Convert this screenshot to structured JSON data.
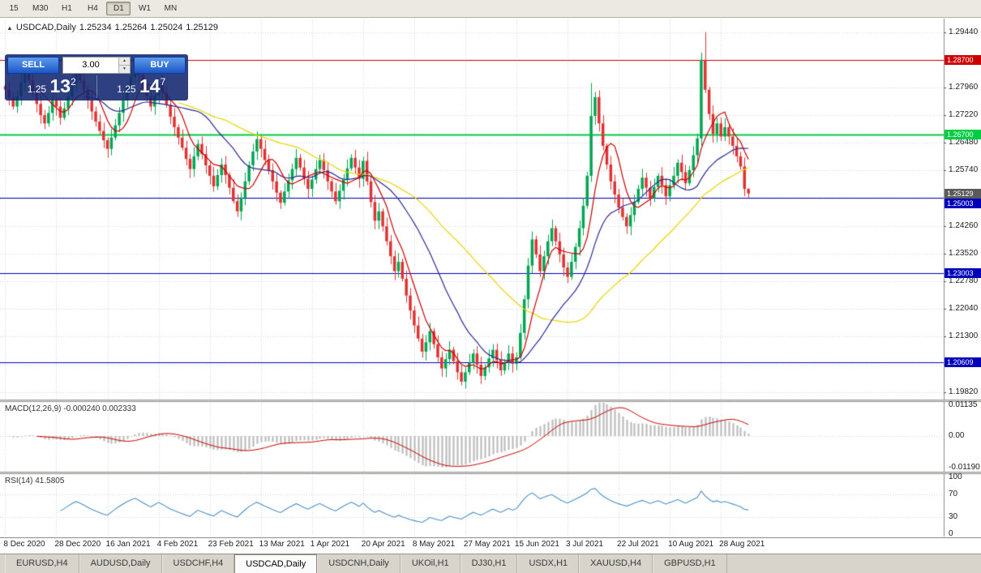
{
  "toolbar": {
    "periods": [
      {
        "label": "15",
        "active": false
      },
      {
        "label": "M30",
        "active": false
      },
      {
        "label": "H1",
        "active": false
      },
      {
        "label": "H4",
        "active": false
      },
      {
        "label": "D1",
        "active": true
      },
      {
        "label": "W1",
        "active": false
      },
      {
        "label": "MN",
        "active": false
      }
    ]
  },
  "chart_header": {
    "collapse_icon": "▲",
    "symbol": "USDCAD,Daily",
    "open": "1.25234",
    "high": "1.25264",
    "low": "1.25024",
    "close": "1.25129"
  },
  "trade_panel": {
    "sell_label": "SELL",
    "buy_label": "BUY",
    "volume": "3.00",
    "up_arrow": "▲",
    "down_arrow": "▼",
    "sell_price": {
      "base": "1.25",
      "pips": "13",
      "point": "2"
    },
    "buy_price": {
      "base": "1.25",
      "pips": "14",
      "point": "7"
    }
  },
  "chart_data": {
    "type": "candlestick",
    "symbol": "USDCAD",
    "timeframe": "Daily",
    "up_color": "#00a652",
    "down_color": "#e03232",
    "first_open": 1.28,
    "closes": [
      1.279,
      1.2768,
      1.2745,
      1.2772,
      1.2808,
      1.2836,
      1.2815,
      1.2782,
      1.2752,
      1.2722,
      1.27,
      1.2728,
      1.2762,
      1.2745,
      1.2715,
      1.274,
      1.2772,
      1.2806,
      1.2834,
      1.2815,
      1.279,
      1.2762,
      1.2732,
      1.2705,
      1.268,
      1.2655,
      1.2632,
      1.2662,
      1.2695,
      1.2728,
      1.2762,
      1.2795,
      1.2825,
      1.2852,
      1.283,
      1.2802,
      1.2772,
      1.2745,
      1.2775,
      1.2808,
      1.2782,
      1.275,
      1.2718,
      1.269,
      1.2662,
      1.2635,
      1.2605,
      1.2578,
      1.2612,
      1.2645,
      1.2618,
      1.2588,
      1.256,
      1.2532,
      1.2562,
      1.259,
      1.2562,
      1.2528,
      1.2492,
      1.2465,
      1.2502,
      1.2545,
      1.2588,
      1.2625,
      1.2658,
      1.2632,
      1.2602,
      1.2575,
      1.2545,
      1.2515,
      1.2488,
      1.2518,
      1.2548,
      1.2578,
      1.2608,
      1.2582,
      1.2552,
      1.2525,
      1.255,
      1.2578,
      1.2602,
      1.2575,
      1.2545,
      1.2518,
      1.2492,
      1.252,
      1.255,
      1.258,
      1.2608,
      1.2582,
      1.2552,
      1.26,
      1.2545,
      1.249,
      1.244,
      1.2465,
      1.2425,
      1.2385,
      1.2345,
      1.2305,
      1.233,
      1.2285,
      1.224,
      1.22,
      1.216,
      1.2125,
      1.209,
      1.2115,
      1.2145,
      1.211,
      1.2075,
      1.2045,
      1.207,
      1.2095,
      1.2065,
      1.2035,
      1.201,
      1.2035,
      1.206,
      1.2085,
      1.2055,
      1.2025,
      1.2048,
      1.2072,
      1.2095,
      1.2068,
      1.204,
      1.2062,
      1.2085,
      1.2058,
      1.2075,
      1.214,
      1.223,
      1.232,
      1.239,
      1.235,
      1.2305,
      1.2345,
      1.2385,
      1.242,
      1.2385,
      1.235,
      1.2315,
      1.229,
      1.233,
      1.237,
      1.242,
      1.248,
      1.256,
      1.272,
      1.277,
      1.27,
      1.264,
      1.259,
      1.2545,
      1.251,
      1.2475,
      1.245,
      1.2425,
      1.2455,
      1.249,
      1.2525,
      1.2555,
      1.2528,
      1.25,
      1.253,
      1.256,
      1.2535,
      1.2505,
      1.2535,
      1.256,
      1.2595,
      1.257,
      1.254,
      1.2575,
      1.2615,
      1.266,
      1.287,
      1.279,
      1.2725,
      1.2672,
      1.27,
      1.2665,
      1.269,
      1.2665,
      1.264,
      1.2612,
      1.2585,
      1.2525,
      1.2513
    ],
    "special_wicks": {
      "59": {
        "l": 1.245
      },
      "116": {
        "l": 1.2
      },
      "149": {
        "h": 1.2808
      },
      "178": {
        "h": 1.2944
      },
      "189": {
        "h": 1.2527,
        "l": 1.2502
      }
    },
    "x_labels": [
      "8 Dec 2020",
      "28 Dec 2020",
      "16 Jan 2021",
      "4 Feb 2021",
      "23 Feb 2021",
      "13 Mar 2021",
      "1 Apr 2021",
      "20 Apr 2021",
      "8 May 2021",
      "27 May 2021",
      "15 Jun 2021",
      "3 Jul 2021",
      "22 Jul 2021",
      "10 Aug 2021",
      "28 Aug 2021"
    ],
    "x_label_indices": [
      0,
      13,
      26,
      39,
      52,
      65,
      78,
      91,
      104,
      117,
      130,
      143,
      156,
      169,
      182
    ],
    "grid_anchor": 1.2944,
    "grid_step": 0.0074,
    "grid_count": 14,
    "y_ticks": [
      "1.29440",
      "1.27960",
      "1.27220",
      "1.26480",
      "1.25740",
      "1.24260",
      "1.23520",
      "1.22780",
      "1.22040",
      "1.21300",
      "1.20560",
      "1.19820"
    ],
    "levels": [
      {
        "price": 1.287,
        "label": "1.28700",
        "color": "#cc0000",
        "width": 1
      },
      {
        "price": 1.267,
        "label": "1.26700",
        "color": "#00cc44",
        "width": 2
      },
      {
        "price": 1.25129,
        "label": "1.25129",
        "color": "#5a5a5a",
        "width": 0
      },
      {
        "price": 1.25003,
        "label": "1.25003",
        "color": "#0000bb",
        "width": 1
      },
      {
        "price": 1.23003,
        "label": "1.23003",
        "color": "#0000bb",
        "width": 1
      },
      {
        "price": 1.20609,
        "label": "1.20609",
        "color": "#0000bb",
        "width": 1
      }
    ],
    "moving_averages": [
      {
        "period": 45,
        "color": "#e6d600"
      },
      {
        "period": 21,
        "color": "#2a2a9a"
      },
      {
        "period": 7,
        "color": "#cc0000"
      }
    ],
    "macd": {
      "label": "MACD(12,26,9)",
      "value_main": "-0.000240",
      "value_signal": "0.002333",
      "ticks": [
        "0.01135",
        "0.00",
        "-0.01190"
      ],
      "bar_color": "#bdbdbd",
      "signal_color": "#cc0000"
    },
    "rsi": {
      "label": "RSI(14)",
      "value": "41.5805",
      "ticks": [
        "100",
        "70",
        "30",
        "0"
      ],
      "level_lines": [
        70,
        30
      ],
      "line_color": "#4a8fc7"
    }
  },
  "tabs": {
    "items": [
      {
        "label": "EURUSD,H4",
        "active": false
      },
      {
        "label": "AUDUSD,Daily",
        "active": false
      },
      {
        "label": "USDCHF,H4",
        "active": false
      },
      {
        "label": "USDCAD,Daily",
        "active": true
      },
      {
        "label": "USDCNH,Daily",
        "active": false
      },
      {
        "label": "UKOil,H1",
        "active": false
      },
      {
        "label": "DJ30,H1",
        "active": false
      },
      {
        "label": "USDX,H1",
        "active": false
      },
      {
        "label": "XAUUSD,H4",
        "active": false
      },
      {
        "label": "GBPUSD,H1",
        "active": false
      }
    ]
  }
}
